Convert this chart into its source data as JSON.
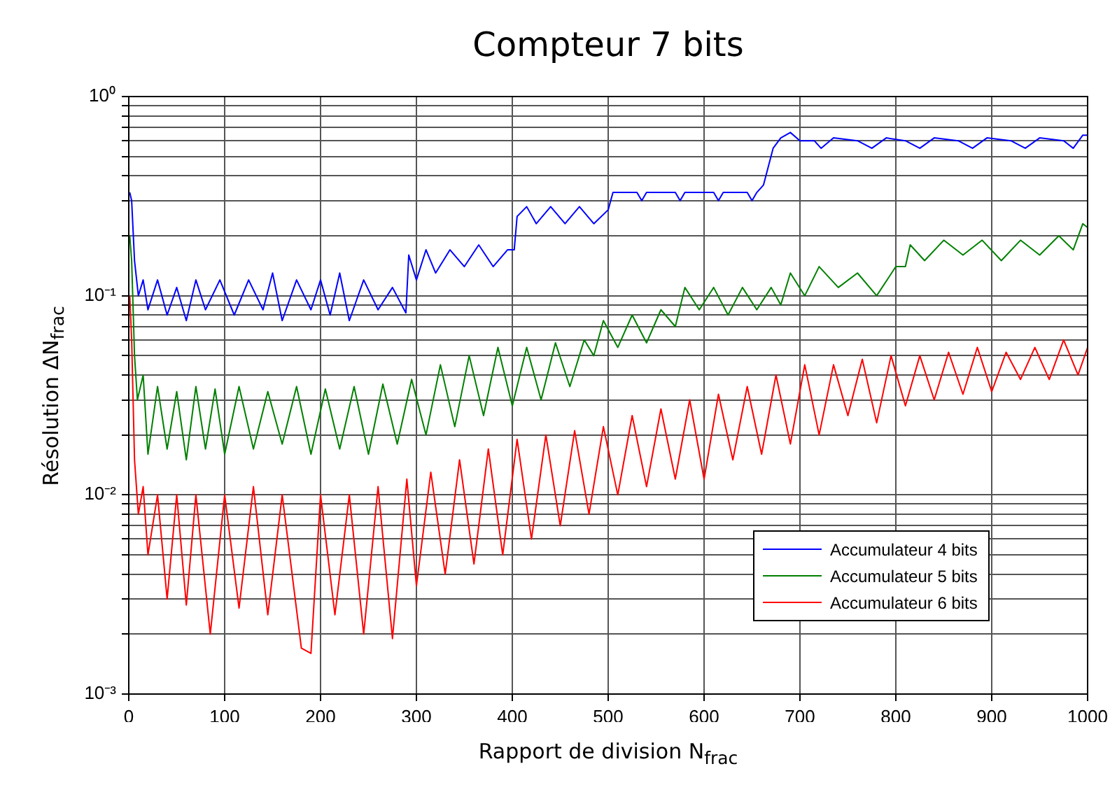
{
  "chart_data": {
    "type": "line",
    "title": "Compteur 7 bits",
    "xlabel": "Rapport de division N$_{frac}$",
    "ylabel": "Résolution ΔN$_{frac}$",
    "log": "y",
    "grid": true,
    "legend": "bottom right",
    "marker": "none",
    "line_style": "solid",
    "xlim": [
      0,
      1000
    ],
    "xticks": [
      0,
      100,
      200,
      300,
      400,
      500,
      600,
      700,
      800,
      900,
      1000
    ],
    "ylim": [
      0.001,
      1
    ],
    "yticks": [
      {
        "value": 0.001,
        "label": "10⁻³"
      },
      {
        "value": 0.002,
        "label": null
      },
      {
        "value": 0.003,
        "label": null
      },
      {
        "value": 0.004,
        "label": null
      },
      {
        "value": 0.005,
        "label": null
      },
      {
        "value": 0.006,
        "label": null
      },
      {
        "value": 0.007,
        "label": null
      },
      {
        "value": 0.008,
        "label": null
      },
      {
        "value": 0.009,
        "label": null
      },
      {
        "value": 0.01,
        "label": "10⁻²"
      },
      {
        "value": 0.02,
        "label": null
      },
      {
        "value": 0.03,
        "label": null
      },
      {
        "value": 0.04,
        "label": null
      },
      {
        "value": 0.05,
        "label": null
      },
      {
        "value": 0.06,
        "label": null
      },
      {
        "value": 0.07,
        "label": null
      },
      {
        "value": 0.08,
        "label": null
      },
      {
        "value": 0.09,
        "label": null
      },
      {
        "value": 0.1,
        "label": "10⁻¹"
      },
      {
        "value": 0.2,
        "label": null
      },
      {
        "value": 0.3,
        "label": null
      },
      {
        "value": 0.4,
        "label": null
      },
      {
        "value": 0.5,
        "label": null
      },
      {
        "value": 0.6,
        "label": null
      },
      {
        "value": 0.7,
        "label": null
      },
      {
        "value": 0.8,
        "label": null
      },
      {
        "value": 0.9,
        "label": null
      },
      {
        "value": 1,
        "label": "10⁰"
      }
    ],
    "series": [
      {
        "name": "Accumulateur 4 bits",
        "color": "#0000ff",
        "x": [
          1,
          3,
          6,
          10,
          15,
          20,
          30,
          40,
          50,
          60,
          70,
          80,
          95,
          110,
          125,
          140,
          150,
          160,
          175,
          190,
          200,
          210,
          220,
          230,
          245,
          260,
          275,
          289,
          292,
          300,
          310,
          320,
          335,
          350,
          365,
          380,
          395,
          402,
          405,
          415,
          425,
          440,
          455,
          470,
          485,
          500,
          505,
          530,
          535,
          540,
          570,
          575,
          580,
          610,
          615,
          620,
          645,
          650,
          655,
          662,
          672,
          680,
          690,
          700,
          715,
          722,
          735,
          760,
          775,
          790,
          810,
          825,
          840,
          865,
          880,
          895,
          920,
          935,
          950,
          975,
          985,
          995,
          1000
        ],
        "values": [
          0.33,
          0.3,
          0.15,
          0.1,
          0.12,
          0.085,
          0.12,
          0.08,
          0.11,
          0.075,
          0.12,
          0.085,
          0.12,
          0.08,
          0.12,
          0.085,
          0.13,
          0.075,
          0.12,
          0.085,
          0.12,
          0.08,
          0.13,
          0.075,
          0.12,
          0.085,
          0.11,
          0.082,
          0.16,
          0.12,
          0.17,
          0.13,
          0.17,
          0.14,
          0.18,
          0.14,
          0.17,
          0.17,
          0.25,
          0.28,
          0.23,
          0.28,
          0.23,
          0.28,
          0.23,
          0.27,
          0.33,
          0.33,
          0.3,
          0.33,
          0.33,
          0.3,
          0.33,
          0.33,
          0.3,
          0.33,
          0.33,
          0.3,
          0.33,
          0.36,
          0.55,
          0.62,
          0.66,
          0.6,
          0.6,
          0.55,
          0.62,
          0.6,
          0.55,
          0.62,
          0.6,
          0.55,
          0.62,
          0.6,
          0.55,
          0.62,
          0.6,
          0.55,
          0.62,
          0.6,
          0.55,
          0.64,
          0.64
        ]
      },
      {
        "name": "Accumulateur 5 bits",
        "color": "#008000",
        "x": [
          1,
          3,
          6,
          9,
          15,
          20,
          30,
          40,
          50,
          60,
          70,
          80,
          90,
          100,
          115,
          130,
          145,
          160,
          175,
          190,
          205,
          220,
          235,
          250,
          265,
          280,
          295,
          310,
          325,
          340,
          355,
          370,
          385,
          400,
          415,
          430,
          445,
          460,
          475,
          485,
          495,
          510,
          525,
          540,
          555,
          570,
          580,
          595,
          610,
          625,
          640,
          655,
          670,
          680,
          690,
          705,
          720,
          740,
          760,
          780,
          800,
          810,
          815,
          830,
          850,
          870,
          890,
          910,
          930,
          950,
          970,
          985,
          995,
          1000
        ],
        "values": [
          0.2,
          0.15,
          0.05,
          0.03,
          0.04,
          0.016,
          0.035,
          0.017,
          0.033,
          0.015,
          0.035,
          0.017,
          0.034,
          0.016,
          0.035,
          0.017,
          0.033,
          0.018,
          0.035,
          0.016,
          0.034,
          0.017,
          0.035,
          0.016,
          0.036,
          0.018,
          0.038,
          0.02,
          0.045,
          0.022,
          0.05,
          0.025,
          0.055,
          0.028,
          0.055,
          0.03,
          0.058,
          0.035,
          0.06,
          0.05,
          0.075,
          0.055,
          0.08,
          0.058,
          0.085,
          0.07,
          0.11,
          0.085,
          0.11,
          0.08,
          0.11,
          0.085,
          0.11,
          0.09,
          0.13,
          0.1,
          0.14,
          0.11,
          0.13,
          0.1,
          0.14,
          0.14,
          0.18,
          0.15,
          0.19,
          0.16,
          0.19,
          0.15,
          0.19,
          0.16,
          0.2,
          0.17,
          0.23,
          0.22
        ]
      },
      {
        "name": "Accumulateur 6 bits",
        "color": "#ff0000",
        "x": [
          1,
          3,
          6,
          10,
          15,
          20,
          30,
          40,
          50,
          60,
          70,
          85,
          100,
          115,
          130,
          145,
          160,
          180,
          190,
          200,
          215,
          230,
          245,
          260,
          275,
          290,
          300,
          315,
          330,
          345,
          360,
          375,
          390,
          405,
          420,
          435,
          450,
          465,
          480,
          495,
          510,
          525,
          540,
          555,
          570,
          585,
          600,
          615,
          630,
          645,
          660,
          675,
          690,
          705,
          720,
          735,
          750,
          765,
          780,
          795,
          810,
          825,
          840,
          855,
          870,
          885,
          900,
          915,
          930,
          945,
          960,
          975,
          990,
          1000
        ],
        "values": [
          0.1,
          0.06,
          0.015,
          0.008,
          0.011,
          0.005,
          0.01,
          0.003,
          0.01,
          0.0028,
          0.01,
          0.002,
          0.01,
          0.0027,
          0.011,
          0.0025,
          0.01,
          0.0017,
          0.0016,
          0.01,
          0.0025,
          0.01,
          0.002,
          0.011,
          0.0019,
          0.012,
          0.0035,
          0.013,
          0.004,
          0.015,
          0.0045,
          0.017,
          0.005,
          0.019,
          0.006,
          0.02,
          0.007,
          0.021,
          0.008,
          0.022,
          0.01,
          0.025,
          0.011,
          0.027,
          0.012,
          0.03,
          0.012,
          0.032,
          0.015,
          0.035,
          0.016,
          0.04,
          0.018,
          0.045,
          0.02,
          0.045,
          0.025,
          0.048,
          0.023,
          0.05,
          0.028,
          0.05,
          0.03,
          0.052,
          0.032,
          0.055,
          0.033,
          0.052,
          0.038,
          0.055,
          0.038,
          0.06,
          0.04,
          0.055
        ]
      }
    ]
  }
}
